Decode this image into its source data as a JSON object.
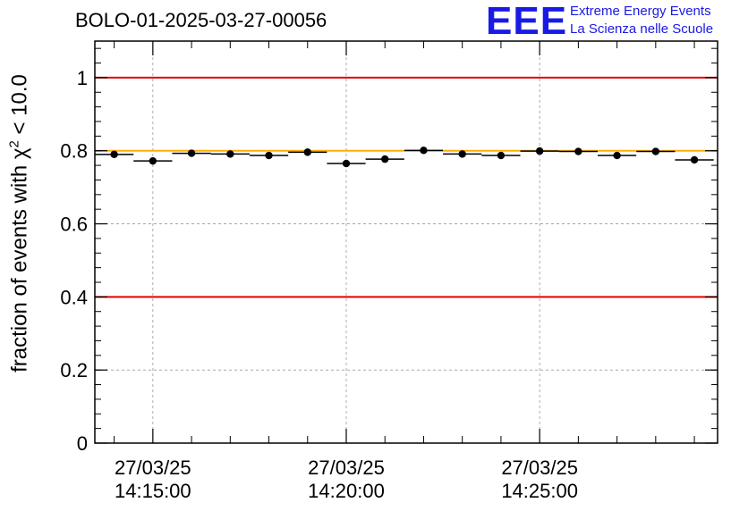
{
  "header": {
    "run_title": "BOLO-01-2025-03-27-00056",
    "logo_text": "EEE",
    "logo_line1": "Extreme Energy Events",
    "logo_line2": "La Scienza nelle Scuole"
  },
  "colors": {
    "threshold_red": "#e00000",
    "reference_orange": "#ffb000",
    "logo_blue": "#1a1ae6",
    "grid": "#9a9a9a"
  },
  "chart_data": {
    "type": "scatter",
    "title": "BOLO-01-2025-03-27-00056",
    "xlabel": "",
    "ylabel_prefix": "fraction of events with ",
    "ylabel_symbol": "χ",
    "ylabel_sup": "2",
    "ylabel_suffix": " < 10.0",
    "x_unit": "minutes since 14:15:00",
    "xlim": [
      -1.5,
      14.6
    ],
    "ylim": [
      0,
      1.1
    ],
    "y_ticks": [
      0,
      0.2,
      0.4,
      0.6,
      0.8,
      1
    ],
    "y_tick_labels": [
      "0",
      "0.2",
      "0.4",
      "0.6",
      "0.8",
      "1"
    ],
    "x_ticks": [
      {
        "x": 0,
        "date": "27/03/25",
        "time": "14:15:00"
      },
      {
        "x": 5,
        "date": "27/03/25",
        "time": "14:20:00"
      },
      {
        "x": 10,
        "date": "27/03/25",
        "time": "14:25:00"
      }
    ],
    "bin_width": 1,
    "x": [
      -1,
      0,
      1,
      2,
      3,
      4,
      5,
      6,
      7,
      8,
      9,
      10,
      11,
      12,
      13,
      14
    ],
    "values": [
      0.79,
      0.772,
      0.793,
      0.791,
      0.787,
      0.796,
      0.765,
      0.777,
      0.801,
      0.791,
      0.787,
      0.799,
      0.798,
      0.787,
      0.798,
      0.775
    ],
    "reference_lines": [
      {
        "name": "upper-threshold",
        "y": 1.0,
        "color": "#e00000"
      },
      {
        "name": "lower-threshold",
        "y": 0.4,
        "color": "#e00000"
      },
      {
        "name": "reference-level",
        "y": 0.8,
        "color": "#ffb000"
      }
    ],
    "grid": true
  }
}
